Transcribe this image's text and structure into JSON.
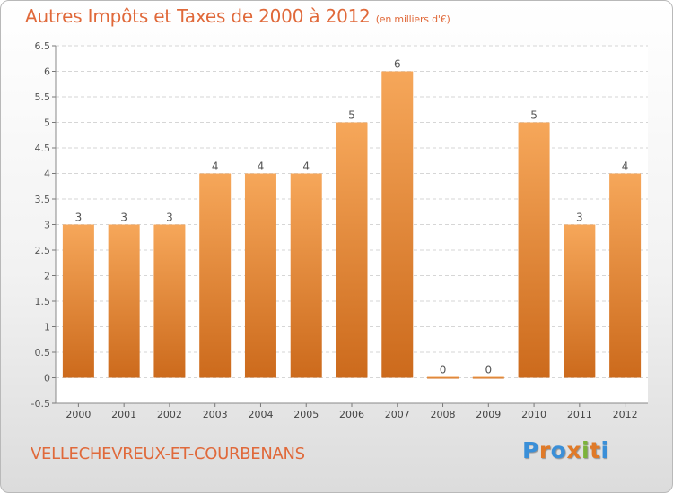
{
  "header": {
    "title": "Autres Impôts et Taxes de 2000 à 2012",
    "unit": "(en milliers d'€)"
  },
  "footer": {
    "commune": "VELLECHEVREUX-ET-COURBENANS",
    "logo": {
      "letters": [
        "P",
        "r",
        "o",
        "x",
        "i",
        "t",
        "i"
      ],
      "colors": [
        "#3a8fd8",
        "#e07a28",
        "#3a8fd8",
        "#e07a28",
        "#7cb33a",
        "#e07a28",
        "#3a8fd8"
      ]
    }
  },
  "chart_data": {
    "type": "bar",
    "title": "Autres Impôts et Taxes de 2000 à 2012",
    "subtitle": "(en milliers d'€)",
    "categories": [
      "2000",
      "2001",
      "2002",
      "2003",
      "2004",
      "2005",
      "2006",
      "2007",
      "2008",
      "2009",
      "2010",
      "2011",
      "2012"
    ],
    "values": [
      3,
      3,
      3,
      4,
      4,
      4,
      5,
      6,
      0,
      0,
      5,
      3,
      4
    ],
    "data_labels": [
      "3",
      "3",
      "3",
      "4",
      "4",
      "4",
      "5",
      "6",
      "0",
      "0",
      "5",
      "3",
      "4"
    ],
    "yticks": [
      "-0.5",
      "0",
      "0.5",
      "1",
      "1.5",
      "2",
      "2.5",
      "3",
      "3.5",
      "4",
      "4.5",
      "5",
      "5.5",
      "6",
      "6.5"
    ],
    "ylim": [
      -0.5,
      6.5
    ],
    "grid": true,
    "colors": {
      "bar_light": "#f6a75a",
      "bar_dark": "#cc6a1c",
      "text": "#e0693a"
    }
  }
}
